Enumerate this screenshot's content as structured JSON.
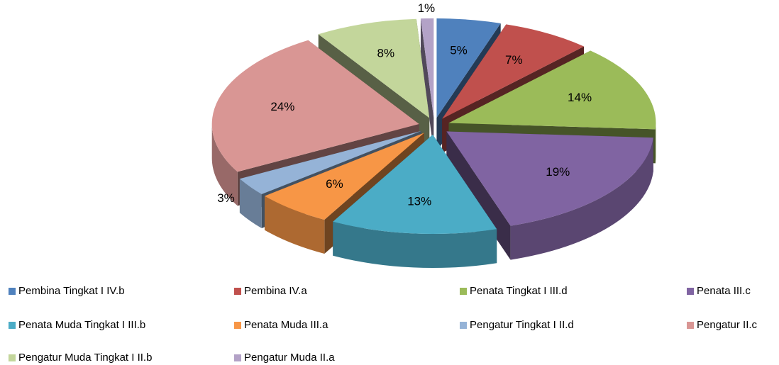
{
  "chart_data": {
    "type": "pie",
    "categories": [
      "Pembina Tingkat I IV.b",
      "Pembina IV.a",
      "Penata Tingkat I III.d",
      "Penata III.c",
      "Penata Muda Tingkat I III.b",
      "Penata Muda III.a",
      "Pengatur Tingkat I II.d",
      "Pengatur II.c",
      "Pengatur Muda Tingkat I II.b",
      "Pengatur Muda II.a"
    ],
    "values": [
      5,
      7,
      14,
      19,
      13,
      6,
      3,
      24,
      8,
      1
    ],
    "value_labels": [
      "5%",
      "7%",
      "14%",
      "19%",
      "13%",
      "6%",
      "3%",
      "24%",
      "8%",
      "1%"
    ],
    "colors": [
      "#4f81bd",
      "#c0504d",
      "#9bbb59",
      "#8064a2",
      "#4bacc6",
      "#f79646",
      "#95b3d7",
      "#d99694",
      "#c3d69b",
      "#b3a2c7"
    ],
    "legend": "bottom"
  }
}
